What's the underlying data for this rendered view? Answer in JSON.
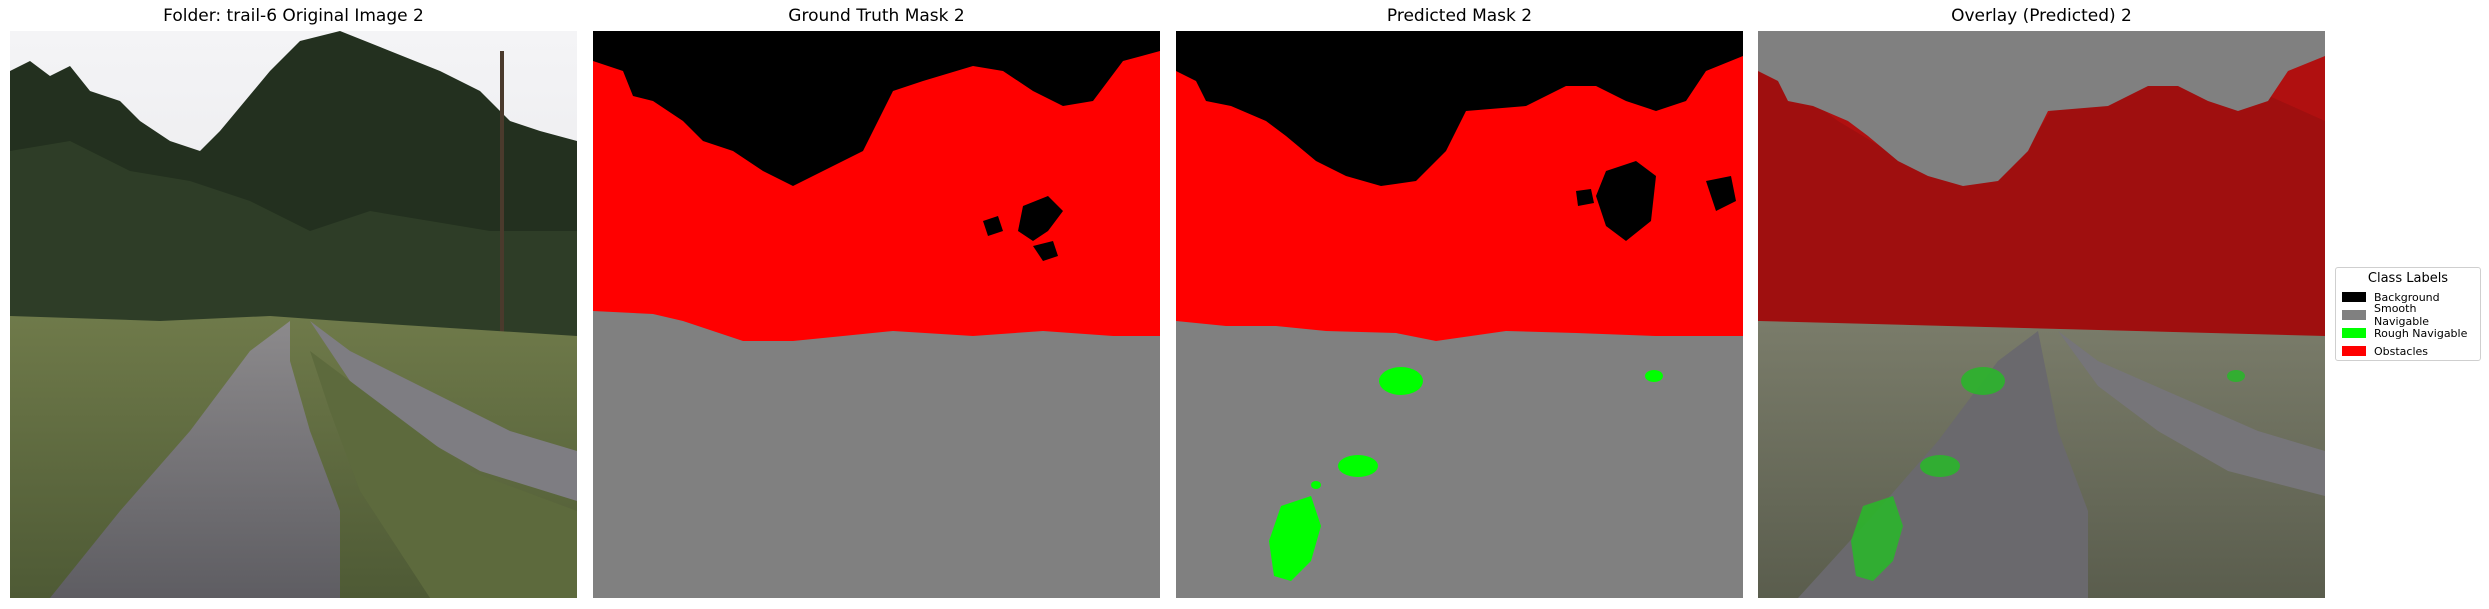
{
  "panels": [
    {
      "title": "Folder: trail-6 Original Image 2"
    },
    {
      "title": "Ground Truth Mask 2"
    },
    {
      "title": "Predicted Mask 2"
    },
    {
      "title": "Overlay (Predicted) 2"
    }
  ],
  "legend": {
    "title": "Class Labels",
    "items": [
      {
        "label": "Background",
        "color": "#000000"
      },
      {
        "label": "Smooth Navigable",
        "color": "#808080"
      },
      {
        "label": "Rough Navigable",
        "color": "#00ff00"
      },
      {
        "label": "Obstacles",
        "color": "#ff0000"
      }
    ]
  }
}
